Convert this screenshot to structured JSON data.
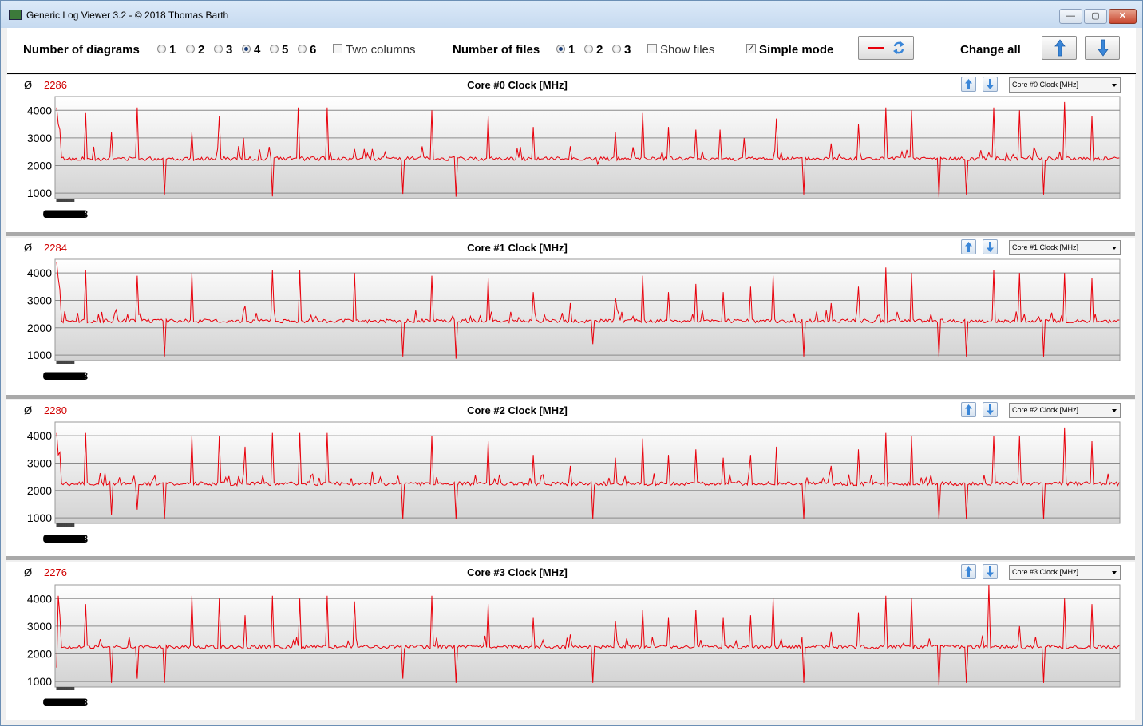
{
  "window": {
    "title": "Generic Log Viewer 3.2 - © 2018 Thomas Barth",
    "minimize_glyph": "—",
    "maximize_glyph": "▢",
    "close_glyph": "✕"
  },
  "toolbar": {
    "diagrams_label": "Number of diagrams",
    "diagram_options": [
      "1",
      "2",
      "3",
      "4",
      "5",
      "6"
    ],
    "diagram_selected": "4",
    "two_columns_label": "Two columns",
    "two_columns_checked": false,
    "files_label": "Number of files",
    "file_options": [
      "1",
      "2",
      "3"
    ],
    "file_selected": "1",
    "show_files_label": "Show files",
    "show_files_checked": false,
    "simple_mode_label": "Simple mode",
    "simple_mode_checked": true,
    "change_all_label": "Change all",
    "icons": [
      "red-line-icon",
      "refresh-icon",
      "arrow-up-icon",
      "arrow-down-icon"
    ]
  },
  "colors": {
    "series": "#e8000b",
    "average": "#d00000",
    "separator": "#a9a9a9",
    "accent_arrow": "#3a86d8"
  },
  "avg_symbol": "Ø",
  "panels": [
    {
      "avg": "2286",
      "title": "Core #0 Clock [MHz]",
      "select_value": "Core #0 Clock [MHz]"
    },
    {
      "avg": "2284",
      "title": "Core #1 Clock [MHz]",
      "select_value": "Core #1 Clock [MHz]"
    },
    {
      "avg": "2280",
      "title": "Core #2 Clock [MHz]",
      "select_value": "Core #2 Clock [MHz]"
    },
    {
      "avg": "2276",
      "title": "Core #3 Clock [MHz]",
      "select_value": "Core #3 Clock [MHz]"
    }
  ],
  "chart_data": [
    {
      "type": "line",
      "title": "Core #0 Clock [MHz]",
      "xlabel": "",
      "ylabel": "",
      "xlim": [
        "00:00",
        "00:59"
      ],
      "ylim": [
        800,
        4500
      ],
      "grid": true,
      "y_ticks": [
        "1000",
        "2000",
        "3000",
        "4000"
      ],
      "x_ticks": [
        "00:00",
        "00:02",
        "00:04",
        "00:06",
        "00:08",
        "00:10",
        "00:12",
        "00:14",
        "00:16",
        "00:18",
        "00:20",
        "00:22",
        "00:24",
        "00:26",
        "00:28",
        "00:30",
        "00:32",
        "00:34",
        "00:36",
        "00:38",
        "00:40",
        "00:42",
        "00:44",
        "00:46",
        "00:48",
        "00:50",
        "00:52",
        "00:54",
        "00:56",
        "00:58"
      ],
      "series": [
        {
          "baseline": 2250,
          "start": [
            4100,
            3500,
            3300
          ],
          "spikes": [
            [
              1.6,
              3900
            ],
            [
              3.0,
              3200
            ],
            [
              4.5,
              4100
            ],
            [
              7.5,
              3200
            ],
            [
              9.0,
              3800
            ],
            [
              10.4,
              3000
            ],
            [
              13.4,
              4100
            ],
            [
              15.0,
              4100
            ],
            [
              16.5,
              2600
            ],
            [
              17.5,
              2600
            ],
            [
              20.8,
              4000
            ],
            [
              24.0,
              3800
            ],
            [
              26.5,
              3400
            ],
            [
              28.5,
              2700
            ],
            [
              31.0,
              3200
            ],
            [
              32.5,
              3900
            ],
            [
              34.0,
              3400
            ],
            [
              35.5,
              3300
            ],
            [
              36.8,
              3300
            ],
            [
              38.2,
              3000
            ],
            [
              40.0,
              3700
            ],
            [
              43.0,
              2800
            ],
            [
              44.5,
              3500
            ],
            [
              46.0,
              4100
            ],
            [
              47.5,
              4000
            ],
            [
              52.0,
              4100
            ],
            [
              53.5,
              4000
            ],
            [
              56.0,
              4300
            ],
            [
              57.5,
              3800
            ]
          ],
          "dips": [
            [
              6.0,
              950
            ],
            [
              12.0,
              880
            ],
            [
              19.2,
              970
            ],
            [
              22.2,
              870
            ],
            [
              30.0,
              2050
            ],
            [
              41.5,
              950
            ],
            [
              49.0,
              850
            ],
            [
              50.5,
              950
            ],
            [
              54.8,
              950
            ]
          ]
        }
      ]
    },
    {
      "type": "line",
      "title": "Core #1 Clock [MHz]",
      "xlabel": "",
      "ylabel": "",
      "xlim": [
        "00:00",
        "00:59"
      ],
      "ylim": [
        800,
        4500
      ],
      "grid": true,
      "y_ticks": [
        "1000",
        "2000",
        "3000",
        "4000"
      ],
      "x_ticks": [
        "00:00",
        "00:02",
        "00:04",
        "00:06",
        "00:08",
        "00:10",
        "00:12",
        "00:14",
        "00:16",
        "00:18",
        "00:20",
        "00:22",
        "00:24",
        "00:26",
        "00:28",
        "00:30",
        "00:32",
        "00:34",
        "00:36",
        "00:38",
        "00:40",
        "00:42",
        "00:44",
        "00:46",
        "00:48",
        "00:50",
        "00:52",
        "00:54",
        "00:56",
        "00:58"
      ],
      "series": [
        {
          "baseline": 2250,
          "start": [
            4400,
            3800,
            3400
          ],
          "spikes": [
            [
              1.6,
              4100
            ],
            [
              4.5,
              3900
            ],
            [
              7.5,
              4000
            ],
            [
              10.5,
              2800
            ],
            [
              12.0,
              4100
            ],
            [
              13.5,
              4100
            ],
            [
              16.5,
              4000
            ],
            [
              20.8,
              3900
            ],
            [
              24.0,
              3800
            ],
            [
              26.5,
              3300
            ],
            [
              28.5,
              2900
            ],
            [
              31.0,
              3100
            ],
            [
              32.5,
              3900
            ],
            [
              34.0,
              3300
            ],
            [
              35.5,
              3600
            ],
            [
              37.0,
              3300
            ],
            [
              38.5,
              3500
            ],
            [
              39.8,
              3900
            ],
            [
              43.0,
              2900
            ],
            [
              44.5,
              3500
            ],
            [
              46.0,
              4200
            ],
            [
              47.5,
              4000
            ],
            [
              52.0,
              4100
            ],
            [
              53.5,
              4000
            ],
            [
              56.0,
              4000
            ],
            [
              57.5,
              3800
            ]
          ],
          "dips": [
            [
              6.0,
              950
            ],
            [
              19.2,
              950
            ],
            [
              22.2,
              870
            ],
            [
              29.8,
              1400
            ],
            [
              41.5,
              950
            ],
            [
              49.0,
              950
            ],
            [
              50.5,
              950
            ],
            [
              54.8,
              950
            ]
          ]
        }
      ]
    },
    {
      "type": "line",
      "title": "Core #2 Clock [MHz]",
      "xlabel": "",
      "ylabel": "",
      "xlim": [
        "00:00",
        "00:59"
      ],
      "ylim": [
        800,
        4500
      ],
      "grid": true,
      "y_ticks": [
        "1000",
        "2000",
        "3000",
        "4000"
      ],
      "x_ticks": [
        "00:00",
        "00:02",
        "00:04",
        "00:06",
        "00:08",
        "00:10",
        "00:12",
        "00:14",
        "00:16",
        "00:18",
        "00:20",
        "00:22",
        "00:24",
        "00:26",
        "00:28",
        "00:30",
        "00:32",
        "00:34",
        "00:36",
        "00:38",
        "00:40",
        "00:42",
        "00:44",
        "00:46",
        "00:48",
        "00:50",
        "00:52",
        "00:54",
        "00:56",
        "00:58"
      ],
      "series": [
        {
          "baseline": 2250,
          "start": [
            4100,
            3300,
            3400
          ],
          "spikes": [
            [
              1.6,
              4100
            ],
            [
              4.5,
              4100
            ],
            [
              7.5,
              4000
            ],
            [
              9.0,
              4000
            ],
            [
              10.5,
              3600
            ],
            [
              12.0,
              4100
            ],
            [
              13.5,
              4100
            ],
            [
              15.0,
              4100
            ],
            [
              17.5,
              2700
            ],
            [
              20.8,
              4000
            ],
            [
              24.0,
              3800
            ],
            [
              26.5,
              3300
            ],
            [
              28.5,
              2900
            ],
            [
              31.0,
              3200
            ],
            [
              32.5,
              3900
            ],
            [
              34.0,
              3300
            ],
            [
              35.5,
              3500
            ],
            [
              37.0,
              3200
            ],
            [
              38.5,
              3300
            ],
            [
              40.0,
              3600
            ],
            [
              43.0,
              2900
            ],
            [
              44.5,
              3500
            ],
            [
              46.0,
              4100
            ],
            [
              47.5,
              4000
            ],
            [
              52.0,
              4000
            ],
            [
              53.5,
              4000
            ],
            [
              56.0,
              4300
            ],
            [
              57.5,
              3800
            ]
          ],
          "dips": [
            [
              3.0,
              1100
            ],
            [
              4.5,
              1300
            ],
            [
              6.0,
              950
            ],
            [
              19.2,
              950
            ],
            [
              22.2,
              950
            ],
            [
              29.8,
              950
            ],
            [
              41.5,
              950
            ],
            [
              49.0,
              950
            ],
            [
              50.5,
              950
            ],
            [
              54.8,
              950
            ]
          ]
        }
      ]
    },
    {
      "type": "line",
      "title": "Core #3 Clock [MHz]",
      "xlabel": "",
      "ylabel": "",
      "xlim": [
        "00:00",
        "00:59"
      ],
      "ylim": [
        800,
        4500
      ],
      "grid": true,
      "y_ticks": [
        "1000",
        "2000",
        "3000",
        "4000"
      ],
      "x_ticks": [
        "00:00",
        "00:02",
        "00:04",
        "00:06",
        "00:08",
        "00:10",
        "00:12",
        "00:14",
        "00:16",
        "00:18",
        "00:20",
        "00:22",
        "00:24",
        "00:26",
        "00:28",
        "00:30",
        "00:32",
        "00:34",
        "00:36",
        "00:38",
        "00:40",
        "00:42",
        "00:44",
        "00:46",
        "00:48",
        "00:50",
        "00:52",
        "00:54",
        "00:56",
        "00:58"
      ],
      "series": [
        {
          "baseline": 2250,
          "start": [
            1500,
            4100,
            3400
          ],
          "spikes": [
            [
              1.6,
              3800
            ],
            [
              4.5,
              3700
            ],
            [
              7.5,
              4100
            ],
            [
              9.0,
              4000
            ],
            [
              10.5,
              3400
            ],
            [
              12.0,
              4100
            ],
            [
              13.5,
              4000
            ],
            [
              15.0,
              4100
            ],
            [
              16.5,
              3900
            ],
            [
              20.8,
              4100
            ],
            [
              24.0,
              3800
            ],
            [
              26.5,
              3300
            ],
            [
              28.5,
              2700
            ],
            [
              31.0,
              3200
            ],
            [
              32.5,
              3600
            ],
            [
              34.0,
              3300
            ],
            [
              35.5,
              3600
            ],
            [
              37.0,
              3300
            ],
            [
              38.5,
              3400
            ],
            [
              39.8,
              4000
            ],
            [
              43.0,
              2800
            ],
            [
              44.5,
              3500
            ],
            [
              46.0,
              4100
            ],
            [
              47.5,
              4000
            ],
            [
              51.8,
              4500
            ],
            [
              53.5,
              3000
            ],
            [
              56.0,
              4000
            ],
            [
              57.5,
              3800
            ]
          ],
          "dips": [
            [
              3.0,
              950
            ],
            [
              4.5,
              1100
            ],
            [
              6.0,
              950
            ],
            [
              19.2,
              1100
            ],
            [
              22.2,
              950
            ],
            [
              29.8,
              950
            ],
            [
              41.5,
              950
            ],
            [
              49.0,
              850
            ],
            [
              50.5,
              950
            ],
            [
              54.8,
              950
            ]
          ]
        }
      ]
    }
  ]
}
